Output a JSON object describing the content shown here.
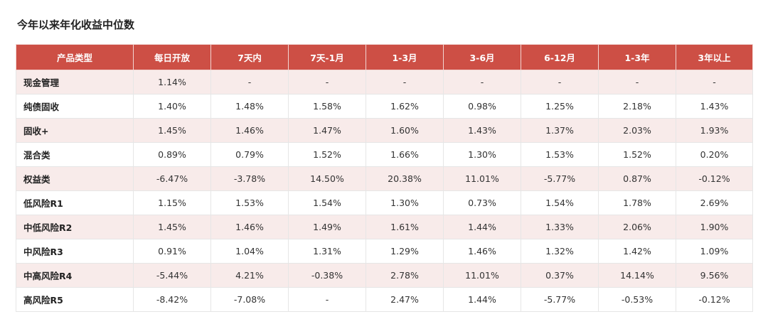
{
  "title": "今年以来年化收益中位数",
  "table": {
    "headers": [
      "产品类型",
      "每日开放",
      "7天内",
      "7天-1月",
      "1-3月",
      "3-6月",
      "6-12月",
      "1-3年",
      "3年以上"
    ],
    "rows": [
      {
        "name": "现金管理",
        "cells": [
          "1.14%",
          "-",
          "-",
          "-",
          "-",
          "-",
          "-",
          "-"
        ]
      },
      {
        "name": "纯债固收",
        "cells": [
          "1.40%",
          "1.48%",
          "1.58%",
          "1.62%",
          "0.98%",
          "1.25%",
          "2.18%",
          "1.43%"
        ]
      },
      {
        "name": "固收+",
        "cells": [
          "1.45%",
          "1.46%",
          "1.47%",
          "1.60%",
          "1.43%",
          "1.37%",
          "2.03%",
          "1.93%"
        ]
      },
      {
        "name": "混合类",
        "cells": [
          "0.89%",
          "0.79%",
          "1.52%",
          "1.66%",
          "1.30%",
          "1.53%",
          "1.52%",
          "0.20%"
        ]
      },
      {
        "name": "权益类",
        "cells": [
          "-6.47%",
          "-3.78%",
          "14.50%",
          "20.38%",
          "11.01%",
          "-5.77%",
          "0.87%",
          "-0.12%"
        ]
      },
      {
        "name": "低风险R1",
        "cells": [
          "1.15%",
          "1.53%",
          "1.54%",
          "1.30%",
          "0.73%",
          "1.54%",
          "1.78%",
          "2.69%"
        ]
      },
      {
        "name": "中低风险R2",
        "cells": [
          "1.45%",
          "1.46%",
          "1.49%",
          "1.61%",
          "1.44%",
          "1.33%",
          "2.06%",
          "1.90%"
        ]
      },
      {
        "name": "中风险R3",
        "cells": [
          "0.91%",
          "1.04%",
          "1.31%",
          "1.29%",
          "1.46%",
          "1.32%",
          "1.42%",
          "1.09%"
        ]
      },
      {
        "name": "中高风险R4",
        "cells": [
          "-5.44%",
          "4.21%",
          "-0.38%",
          "2.78%",
          "11.01%",
          "0.37%",
          "14.14%",
          "9.56%"
        ]
      },
      {
        "name": "高风险R5",
        "cells": [
          "-8.42%",
          "-7.08%",
          "-",
          "2.47%",
          "1.44%",
          "-5.77%",
          "-0.53%",
          "-0.12%"
        ]
      }
    ]
  },
  "colors": {
    "header_bg": "#cd4f45",
    "stripe_bg": "#f8ebea"
  }
}
